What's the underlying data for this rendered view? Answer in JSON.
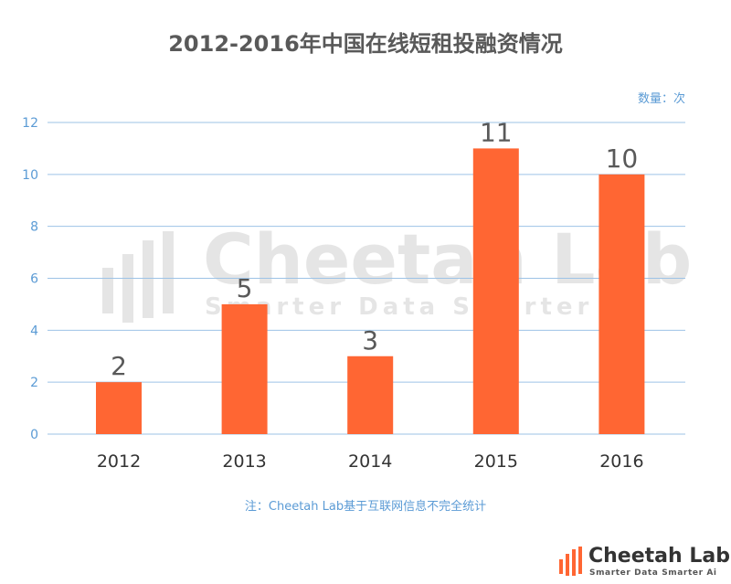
{
  "chart_data": {
    "type": "bar",
    "title": "2012-2016年中国在线短租投融资情况",
    "unit_label": "数量：次",
    "categories": [
      "2012",
      "2013",
      "2014",
      "2015",
      "2016"
    ],
    "values": [
      2,
      5,
      3,
      11,
      10
    ],
    "data_labels": [
      "2",
      "5",
      "3",
      "11",
      "10"
    ],
    "y_ticks": [
      "0",
      "2",
      "4",
      "6",
      "8",
      "10",
      "12"
    ],
    "ylim": [
      0,
      12
    ],
    "grid": true,
    "bar_color": "#ff6633",
    "gridline_color": "#9dc3e6",
    "tick_color": "#5b9bd5"
  },
  "note": "注：Cheetah Lab基于互联网信息不完全统计",
  "logo": {
    "name": "Cheetah Lab",
    "tagline": "Smarter Data Smarter Ai"
  },
  "watermark": {
    "name": "Cheetah Lab",
    "tagline": "Smarter Data Smarter Ai"
  }
}
